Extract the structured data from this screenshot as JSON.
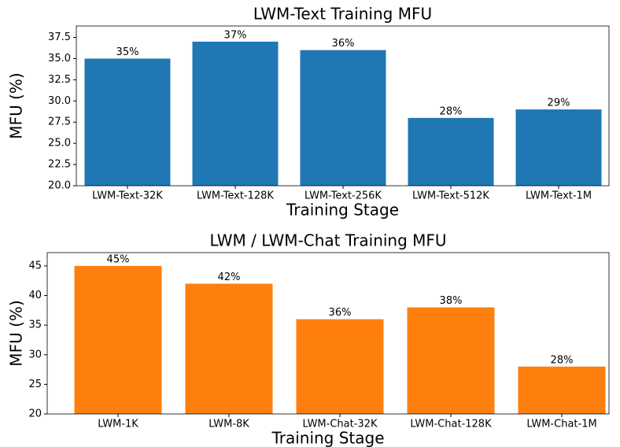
{
  "chart_data": [
    {
      "type": "bar",
      "title": "LWM-Text Training MFU",
      "xlabel": "Training Stage",
      "ylabel": "MFU (%)",
      "categories": [
        "LWM-Text-32K",
        "LWM-Text-128K",
        "LWM-Text-256K",
        "LWM-Text-512K",
        "LWM-Text-1M"
      ],
      "values": [
        35,
        37,
        36,
        28,
        29
      ],
      "value_labels": [
        "35%",
        "37%",
        "36%",
        "28%",
        "29%"
      ],
      "color": "#1f77b4",
      "ylim": [
        20,
        38.85
      ],
      "yticks": [
        {
          "value": 20,
          "label": "20.0"
        },
        22.5,
        {
          "value": 25,
          "label": "25.0"
        },
        27.5,
        {
          "value": 30,
          "label": "30.0"
        },
        32.5,
        {
          "value": 35,
          "label": "35.0"
        },
        37.5
      ]
    },
    {
      "type": "bar",
      "title": "LWM / LWM-Chat Training MFU",
      "xlabel": "Training Stage",
      "ylabel": "MFU (%)",
      "categories": [
        "LWM-1K",
        "LWM-8K",
        "LWM-Chat-32K",
        "LWM-Chat-128K",
        "LWM-Chat-1M"
      ],
      "values": [
        45,
        42,
        36,
        38,
        28
      ],
      "value_labels": [
        "45%",
        "42%",
        "36%",
        "38%",
        "28%"
      ],
      "color": "#ff7f0e",
      "ylim": [
        20,
        47.25
      ],
      "yticks": [
        20,
        25,
        30,
        35,
        40,
        45
      ]
    }
  ]
}
